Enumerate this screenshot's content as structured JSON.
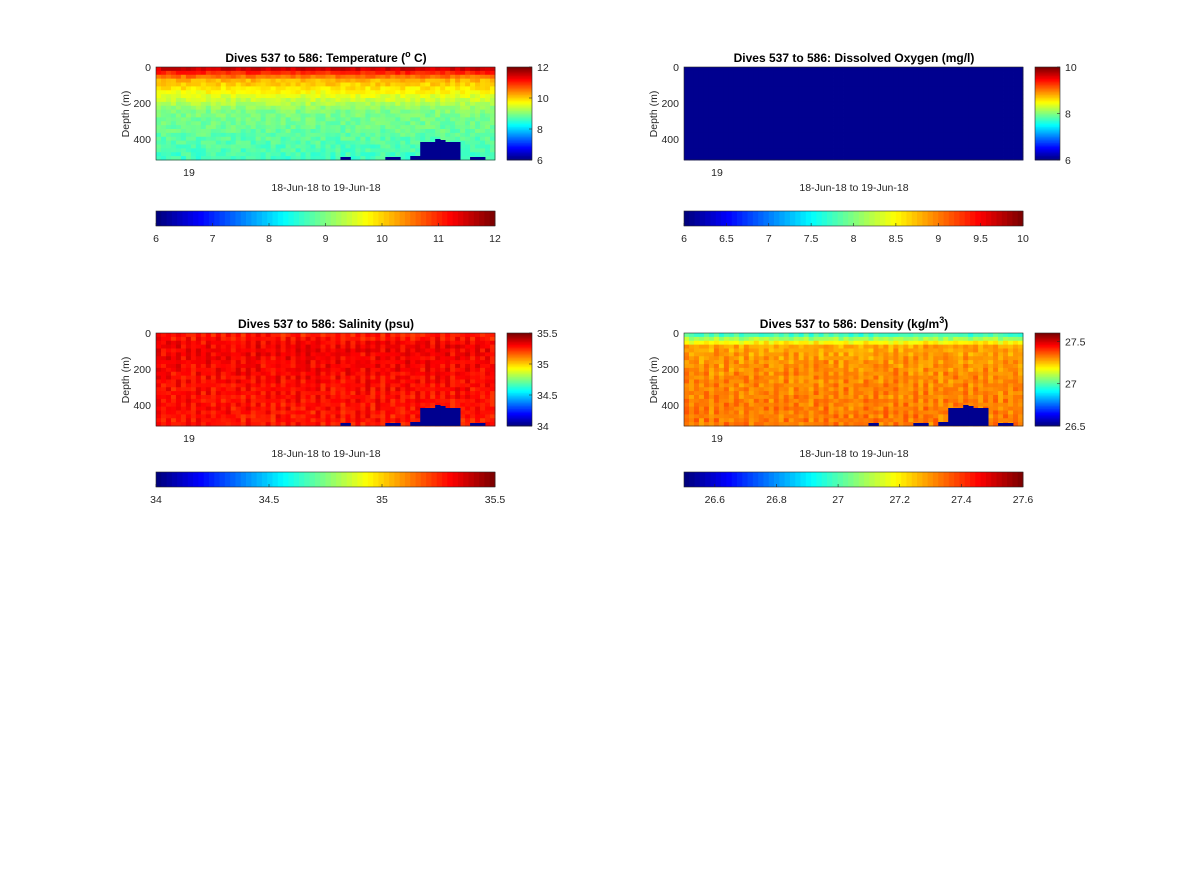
{
  "chart_data": [
    {
      "type": "heatmap",
      "title": "Dives 537 to 586: Temperature (°C)",
      "title_main": "Dives 537 to 586: Temperature (",
      "title_sup": "o",
      "title_tail": " C)",
      "ylabel": "Depth (m)",
      "xlabel": "18-Jun-18 to 19-Jun-18",
      "x_tick": "19",
      "y_ticks": [
        0,
        200,
        400
      ],
      "ylim": [
        0,
        520
      ],
      "colorbar": {
        "range": [
          6,
          12
        ],
        "ticks": [
          6,
          8,
          10,
          12
        ]
      },
      "hcolorbar": {
        "range": [
          6,
          12
        ],
        "ticks": [
          "6",
          "7",
          "8",
          "9",
          "10",
          "11",
          "12"
        ]
      },
      "dives": 50,
      "profile": {
        "surface": 11.5,
        "upper": 10.2,
        "mid": 9.0,
        "deep": 8.6
      },
      "colormap": "jet",
      "bathymetry": "dark blue seafloor at bottom right"
    },
    {
      "type": "heatmap",
      "title": "Dives 537 to 586: Dissolved Oxygen (mg/l)",
      "title_main": "Dives 537 to 586: Dissolved Oxygen (mg/l)",
      "title_sup": "",
      "title_tail": "",
      "ylabel": "Depth (m)",
      "xlabel": "18-Jun-18 to 19-Jun-18",
      "x_tick": "19",
      "y_ticks": [
        0,
        200,
        400
      ],
      "ylim": [
        0,
        520
      ],
      "colorbar": {
        "range": [
          6,
          10
        ],
        "ticks": [
          6,
          8,
          10
        ]
      },
      "hcolorbar": {
        "range": [
          6,
          10
        ],
        "ticks": [
          "6",
          "6.5",
          "7",
          "7.5",
          "8",
          "8.5",
          "9",
          "9.5",
          "10"
        ]
      },
      "dives": 50,
      "profile": {
        "surface": 6,
        "upper": 6,
        "mid": 6,
        "deep": 6
      },
      "colormap": "jet",
      "uniform": true
    },
    {
      "type": "heatmap",
      "title": "Dives 537 to 586: Salinity (psu)",
      "title_main": "Dives 537 to 586: Salinity (psu)",
      "title_sup": "",
      "title_tail": "",
      "ylabel": "Depth (m)",
      "xlabel": "18-Jun-18 to 19-Jun-18",
      "x_tick": "19",
      "y_ticks": [
        0,
        200,
        400
      ],
      "ylim": [
        0,
        520
      ],
      "colorbar": {
        "range": [
          34,
          35.5
        ],
        "ticks": [
          34,
          34.5,
          35,
          35.5
        ]
      },
      "hcolorbar": {
        "range": [
          34,
          35.5
        ],
        "ticks": [
          "34",
          "34.5",
          "35",
          "35.5"
        ]
      },
      "dives": 50,
      "profile": {
        "surface": 35.3,
        "upper": 35.35,
        "mid": 35.33,
        "deep": 35.3
      },
      "colormap": "jet",
      "bathymetry": "dark blue seafloor at bottom right"
    },
    {
      "type": "heatmap",
      "title": "Dives 537 to 586: Density (kg/m³)",
      "title_main": "Dives 537 to 586: Density (kg/m",
      "title_sup": "3",
      "title_tail": ")",
      "ylabel": "Depth (m)",
      "xlabel": "18-Jun-18 to 19-Jun-18",
      "x_tick": "19",
      "y_ticks": [
        0,
        200,
        400
      ],
      "ylim": [
        0,
        520
      ],
      "colorbar": {
        "range": [
          26.5,
          27.6
        ],
        "ticks": [
          26.5,
          27,
          27.5
        ],
        "tick_labels": [
          "26.5",
          "27",
          "27.5"
        ]
      },
      "hcolorbar": {
        "range": [
          26.5,
          27.6
        ],
        "ticks": [
          "26.6",
          "26.8",
          "27",
          "27.2",
          "27.4",
          "27.6"
        ]
      },
      "dives": 50,
      "profile": {
        "surface": 27.0,
        "upper": 27.3,
        "mid": 27.33,
        "deep": 27.35
      },
      "colormap": "jet",
      "bathymetry": "dark blue seafloor at bottom right"
    }
  ]
}
